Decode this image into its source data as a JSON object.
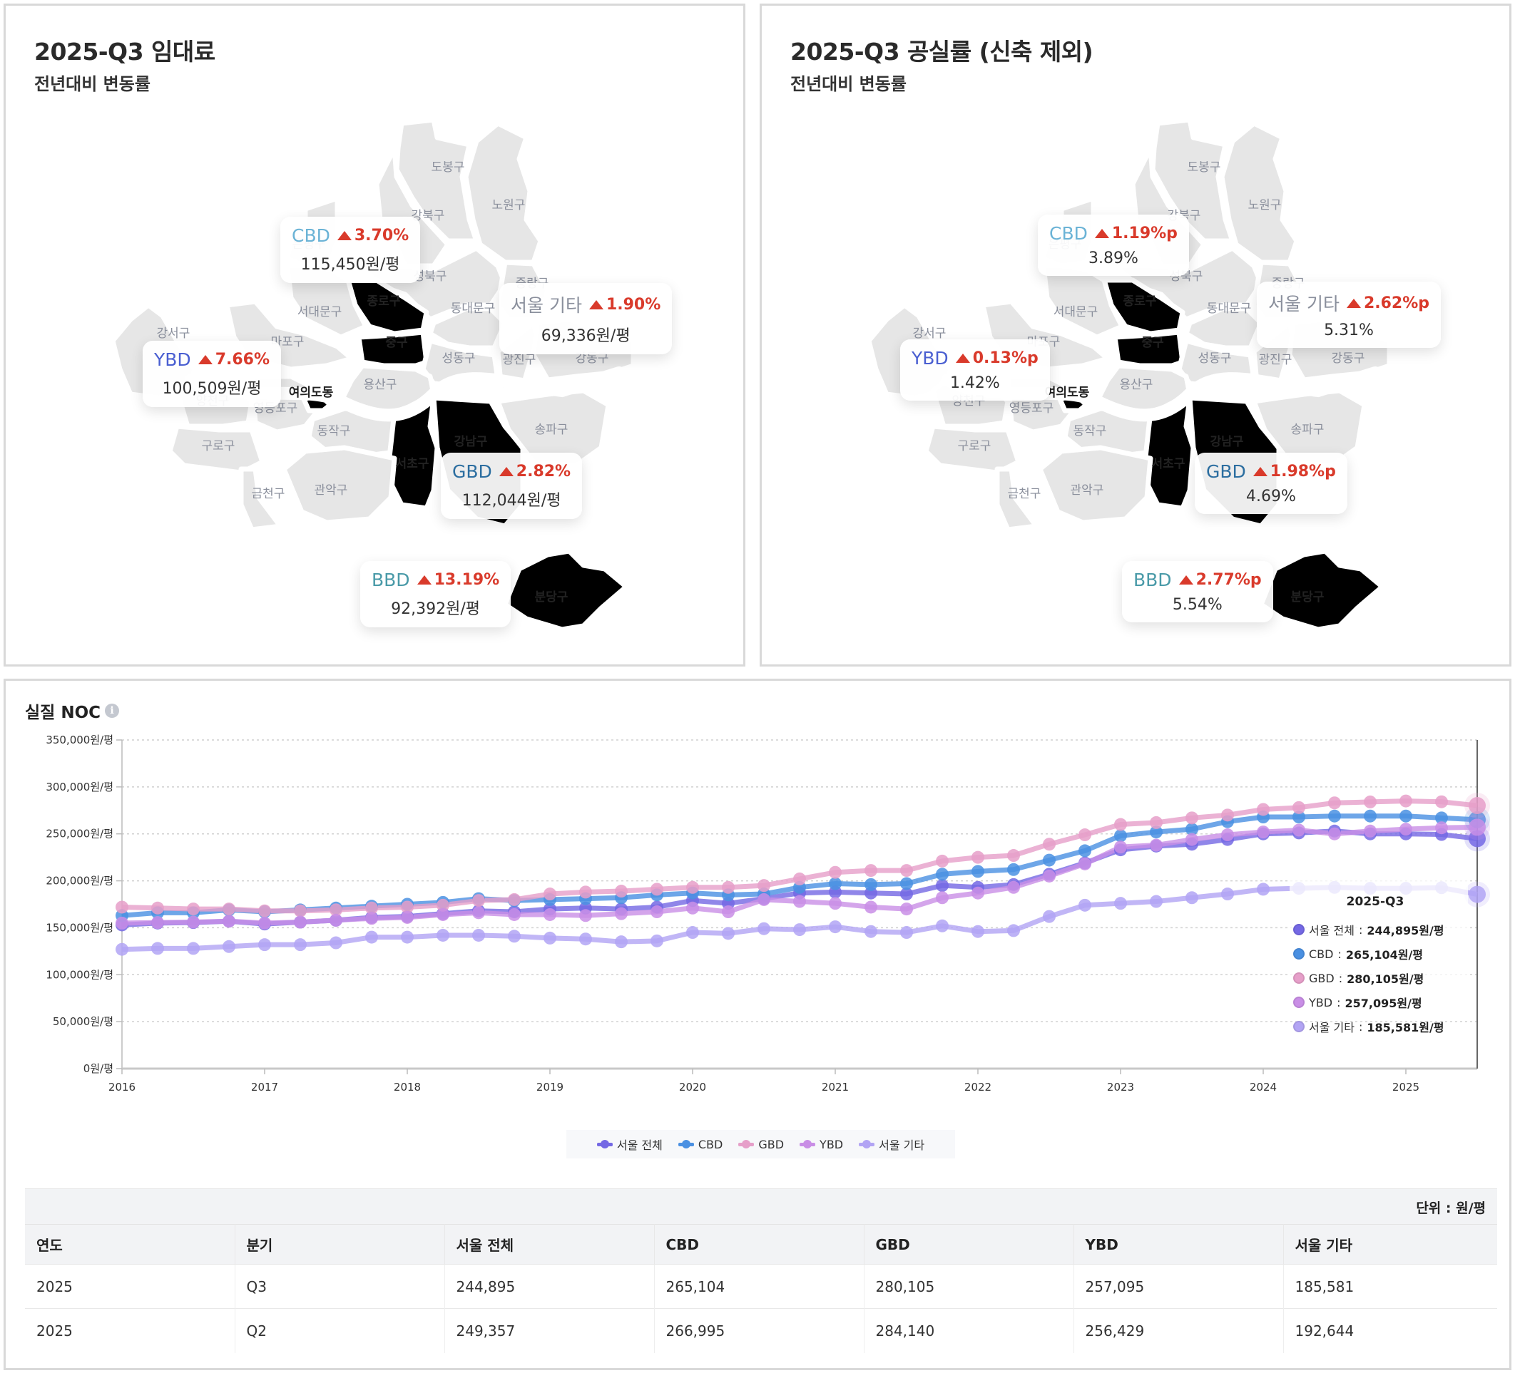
{
  "rent_panel": {
    "title": "2025-Q3 임대료",
    "subtitle": "전년대비 변동률",
    "callouts": [
      {
        "name": "CBD",
        "name_color": "#6bb3d6",
        "delta": "3.70%",
        "direction": "up",
        "value": "115,450원/평"
      },
      {
        "name": "서울 기타",
        "name_color": "#8a8f9c",
        "delta": "1.90%",
        "direction": "up",
        "value": "69,336원/평"
      },
      {
        "name": "YBD",
        "name_color": "#4a5fd1",
        "delta": "7.66%",
        "direction": "up",
        "value": "100,509원/평"
      },
      {
        "name": "GBD",
        "name_color": "#2c6ea0",
        "delta": "2.82%",
        "direction": "up",
        "value": "112,044원/평"
      },
      {
        "name": "BBD",
        "name_color": "#4a9aa8",
        "delta": "13.19%",
        "direction": "up",
        "value": "92,392원/평"
      }
    ]
  },
  "vacancy_panel": {
    "title": "2025-Q3 공실률 (신축 제외)",
    "subtitle": "전년대비 변동률",
    "callouts": [
      {
        "name": "CBD",
        "name_color": "#6bb3d6",
        "delta": "1.19%p",
        "direction": "up",
        "value": "3.89%"
      },
      {
        "name": "서울 기타",
        "name_color": "#8a8f9c",
        "delta": "2.62%p",
        "direction": "up",
        "value": "5.31%"
      },
      {
        "name": "YBD",
        "name_color": "#4a5fd1",
        "delta": "0.13%p",
        "direction": "up",
        "value": "1.42%"
      },
      {
        "name": "GBD",
        "name_color": "#2c6ea0",
        "delta": "1.98%p",
        "direction": "up",
        "value": "4.69%"
      },
      {
        "name": "BBD",
        "name_color": "#4a9aa8",
        "delta": "2.77%p",
        "direction": "up",
        "value": "5.54%"
      }
    ]
  },
  "map": {
    "districts": [
      "도봉구",
      "노원구",
      "강북구",
      "은평구",
      "성북구",
      "중랑구",
      "종로구",
      "서대문구",
      "동대문구",
      "강서구",
      "마포구",
      "중구",
      "성동구",
      "광진구",
      "강동구",
      "양천구",
      "영등포구",
      "여의도동",
      "용산구",
      "동작구",
      "구로구",
      "서초구",
      "강남구",
      "송파구",
      "금천구",
      "관악구",
      "분당구"
    ],
    "highlight_colors": {
      "CBD": "#e3d5f3",
      "GBD": "#d3ebd9",
      "YBD": "#f6c59b",
      "BBD": "#d2e7ee",
      "other": "#e6e6e6"
    }
  },
  "noc": {
    "title": "실질 NOC",
    "info_icon": "info-icon",
    "tooltip": {
      "title": "2025-Q3",
      "rows": [
        {
          "label": "서울 전체",
          "value": "244,895원/평"
        },
        {
          "label": "CBD",
          "value": "265,104원/평"
        },
        {
          "label": "GBD",
          "value": "280,105원/평"
        },
        {
          "label": "YBD",
          "value": "257,095원/평"
        },
        {
          "label": "서울 기타",
          "value": "185,581원/평"
        }
      ]
    },
    "legend": [
      "서울 전체",
      "CBD",
      "GBD",
      "YBD",
      "서울 기타"
    ],
    "table": {
      "unit": "단위 : 원/평",
      "headers": [
        "연도",
        "분기",
        "서울 전체",
        "CBD",
        "GBD",
        "YBD",
        "서울 기타"
      ],
      "rows": [
        [
          "2025",
          "Q3",
          "244,895",
          "265,104",
          "280,105",
          "257,095",
          "185,581"
        ],
        [
          "2025",
          "Q2",
          "249,357",
          "266,995",
          "284,140",
          "256,429",
          "192,644"
        ]
      ]
    }
  },
  "chart_data": {
    "type": "line",
    "title": "실질 NOC",
    "xlabel": "",
    "ylabel": "",
    "x_tick_labels": [
      "2016",
      "2017",
      "2018",
      "2019",
      "2020",
      "2021",
      "2022",
      "2023",
      "2024",
      "2025"
    ],
    "y_tick_labels": [
      "0원/평",
      "50,000원/평",
      "100,000원/평",
      "150,000원/평",
      "200,000원/평",
      "250,000원/평",
      "300,000원/평",
      "350,000원/평"
    ],
    "ylim": [
      0,
      350000
    ],
    "x_start": "2016-Q1",
    "x_end": "2025-Q3",
    "points_per_year": 4,
    "grid": true,
    "legend_position": "bottom",
    "series": [
      {
        "name": "서울 전체",
        "color": "#7468e4",
        "values": [
          153000,
          155000,
          155500,
          157000,
          154000,
          156000,
          158000,
          161000,
          162000,
          165000,
          168000,
          167000,
          170000,
          171000,
          170000,
          172000,
          179000,
          176000,
          181000,
          187000,
          188000,
          187000,
          186000,
          195000,
          193000,
          196000,
          207000,
          219000,
          233000,
          237000,
          239000,
          244000,
          250000,
          251000,
          253000,
          250000,
          250000,
          249357,
          244895
        ]
      },
      {
        "name": "CBD",
        "color": "#4a90e2",
        "values": [
          163000,
          166000,
          166000,
          169000,
          167000,
          169000,
          171000,
          173000,
          175000,
          177000,
          181000,
          179000,
          180000,
          181000,
          182000,
          185000,
          187000,
          185000,
          186000,
          193000,
          197000,
          196000,
          197000,
          207000,
          210000,
          212000,
          222000,
          232000,
          248000,
          252000,
          255000,
          263000,
          268000,
          268000,
          269000,
          269000,
          269000,
          266995,
          265104
        ]
      },
      {
        "name": "GBD",
        "color": "#e69fc9",
        "values": [
          172000,
          171000,
          170000,
          170000,
          168000,
          168000,
          169000,
          171000,
          172000,
          174000,
          179000,
          180000,
          186000,
          188000,
          189000,
          191000,
          193000,
          193000,
          195000,
          202000,
          209000,
          211000,
          211000,
          221000,
          225000,
          227000,
          239000,
          249000,
          260000,
          262000,
          267000,
          270000,
          276000,
          278000,
          283000,
          284000,
          285000,
          284140,
          280105
        ]
      },
      {
        "name": "YBD",
        "color": "#c98ee6",
        "values": [
          155000,
          155500,
          156000,
          157000,
          155000,
          156000,
          158000,
          160000,
          161000,
          164000,
          166000,
          164000,
          164000,
          163000,
          165000,
          167000,
          171000,
          167000,
          180000,
          178000,
          176000,
          172000,
          170000,
          182000,
          187000,
          193000,
          205000,
          218000,
          236000,
          238000,
          244000,
          249000,
          252000,
          254000,
          250000,
          253000,
          255000,
          256429,
          257095
        ]
      },
      {
        "name": "서울 기타",
        "color": "#b2a4f4",
        "values": [
          127000,
          128000,
          128000,
          130000,
          132000,
          132000,
          134000,
          140000,
          140000,
          142000,
          142000,
          141000,
          139000,
          138000,
          135000,
          136000,
          145000,
          144000,
          149000,
          148000,
          151000,
          146000,
          145000,
          152000,
          146000,
          147000,
          162000,
          174000,
          176000,
          178000,
          182000,
          186000,
          191000,
          192000,
          193000,
          192000,
          192000,
          192644,
          185581
        ]
      }
    ]
  }
}
